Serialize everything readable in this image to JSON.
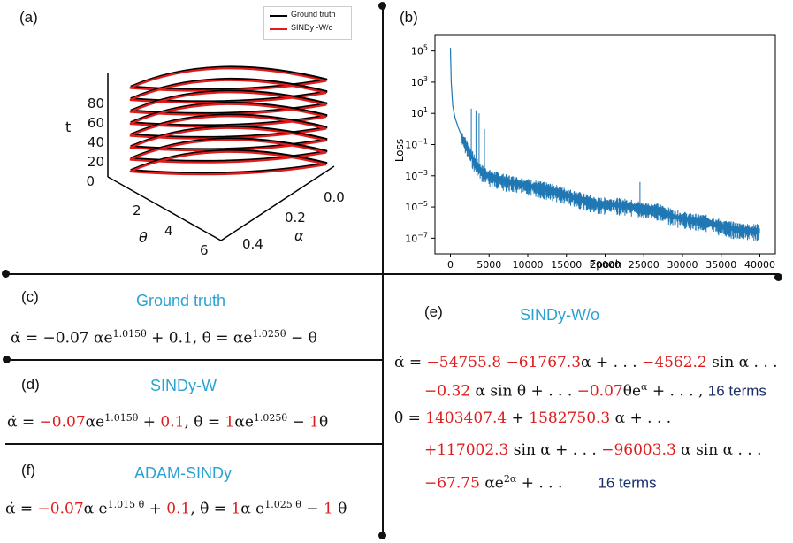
{
  "panel_a": {
    "label": "(a)",
    "legend": [
      "Ground truth",
      "SINDy -W/o"
    ],
    "t_label": "t",
    "t_ticks": [
      "0",
      "20",
      "40",
      "60",
      "80"
    ],
    "theta_label": "θ",
    "theta_ticks": [
      "2",
      "4",
      "6"
    ],
    "alpha_label": "α",
    "alpha_ticks": [
      "0.0",
      "0.2",
      "0.4"
    ],
    "loop_count": 8,
    "colors": {
      "ground_truth": "#000000",
      "sindy_wo": "#e01b1b"
    }
  },
  "panel_b": {
    "label": "(b)",
    "chart_data": {
      "type": "line",
      "title": "",
      "xlabel": "Epoch",
      "ylabel": "Loss",
      "yscale": "log",
      "x_ticks": [
        0,
        5000,
        10000,
        15000,
        20000,
        25000,
        30000,
        35000,
        40000
      ],
      "x_tick_labels": [
        "0",
        "5000",
        "10000",
        "15000",
        "20000",
        "25000",
        "30000",
        "35000",
        "40000"
      ],
      "y_ticks_exp": [
        5,
        3,
        1,
        -1,
        -3,
        -5,
        -7
      ],
      "xlim": [
        -2000,
        42000
      ],
      "ylim_exp": [
        -8,
        6
      ],
      "series": [
        {
          "name": "Loss",
          "color": "#1f77b4",
          "epochs": [
            0,
            100,
            300,
            600,
            1000,
            1500,
            2000,
            3000,
            4000,
            5000,
            7000,
            9000,
            11000,
            13000,
            15000,
            17000,
            19000,
            21000,
            23000,
            25000,
            27000,
            29000,
            31000,
            33000,
            35000,
            37000,
            39000,
            40000
          ],
          "log10_loss": [
            5.2,
            3.0,
            1.5,
            0.7,
            0.1,
            -0.5,
            -1.0,
            -2.0,
            -2.7,
            -3.0,
            -3.3,
            -3.5,
            -3.7,
            -3.9,
            -4.2,
            -4.5,
            -4.8,
            -4.8,
            -4.9,
            -5.1,
            -5.2,
            -5.6,
            -5.8,
            -5.9,
            -6.2,
            -6.4,
            -6.5,
            -6.5
          ]
        }
      ]
    }
  },
  "panel_c": {
    "label": "(c)",
    "title": "Ground truth",
    "eq": {
      "p1": "α̇ = −0.07 αe",
      "s1": "1.015θ",
      "p2": " + 0.1,  ",
      "p3": "θ̇ = αe",
      "s2": "1.025θ",
      "p4": " − θ"
    }
  },
  "panel_d": {
    "label": "(d)",
    "title": "SINDy-W",
    "eq": {
      "p1": "α̇ = ",
      "c1": "−0.07",
      "p2": "αe",
      "s1": "1.015θ",
      "p3": " + ",
      "c2": "0.1",
      "p4": ",  θ̇ = ",
      "c3": "1",
      "p5": "αe",
      "s2": "1.025θ",
      "p6": " − ",
      "c4": "1",
      "p7": "θ"
    }
  },
  "panel_f": {
    "label": "(f)",
    "title": "ADAM-SINDy",
    "eq": {
      "p1": "α̇ = ",
      "c1": "−0.07",
      "p2": "α e",
      "s1": "1.015 θ",
      "p3": " + ",
      "c2": "0.1",
      "p4": ",  θ̇ = ",
      "c3": "1",
      "p5": "α e",
      "s2": "1.025 θ",
      "p6": " − ",
      "c4": "1",
      "p7": " θ"
    }
  },
  "panel_e": {
    "label": "(e)",
    "title": "SINDy-W/o",
    "l1": {
      "p1": "α̇ = ",
      "c1": "−54755.8",
      "p2": " ",
      "c2": "−61767.3",
      "p3": "α + . . . ",
      "c3": "−4562.2",
      "p4": " sin α . . ."
    },
    "l2": {
      "c1": "−0.32",
      "p1": " α sin θ + . . . ",
      "c2": "−0.07",
      "p2": "θe",
      "s1": "α",
      "p3": " + . . . , ",
      "terms": "16 terms"
    },
    "l3": {
      "p1": "θ̇ = ",
      "c1": "1403407.4",
      "p2": " + ",
      "c2": "1582750.3",
      "p3": " α + . . ."
    },
    "l4": {
      "c1": "+117002.3",
      "p1": " sin α + . . . ",
      "c2": "−96003.3",
      "p2": " α sin α . . ."
    },
    "l5": {
      "c1": "−67.75",
      "p1": " αe",
      "s1": "2α",
      "p2": " + . . .",
      "terms": "16 terms"
    }
  }
}
